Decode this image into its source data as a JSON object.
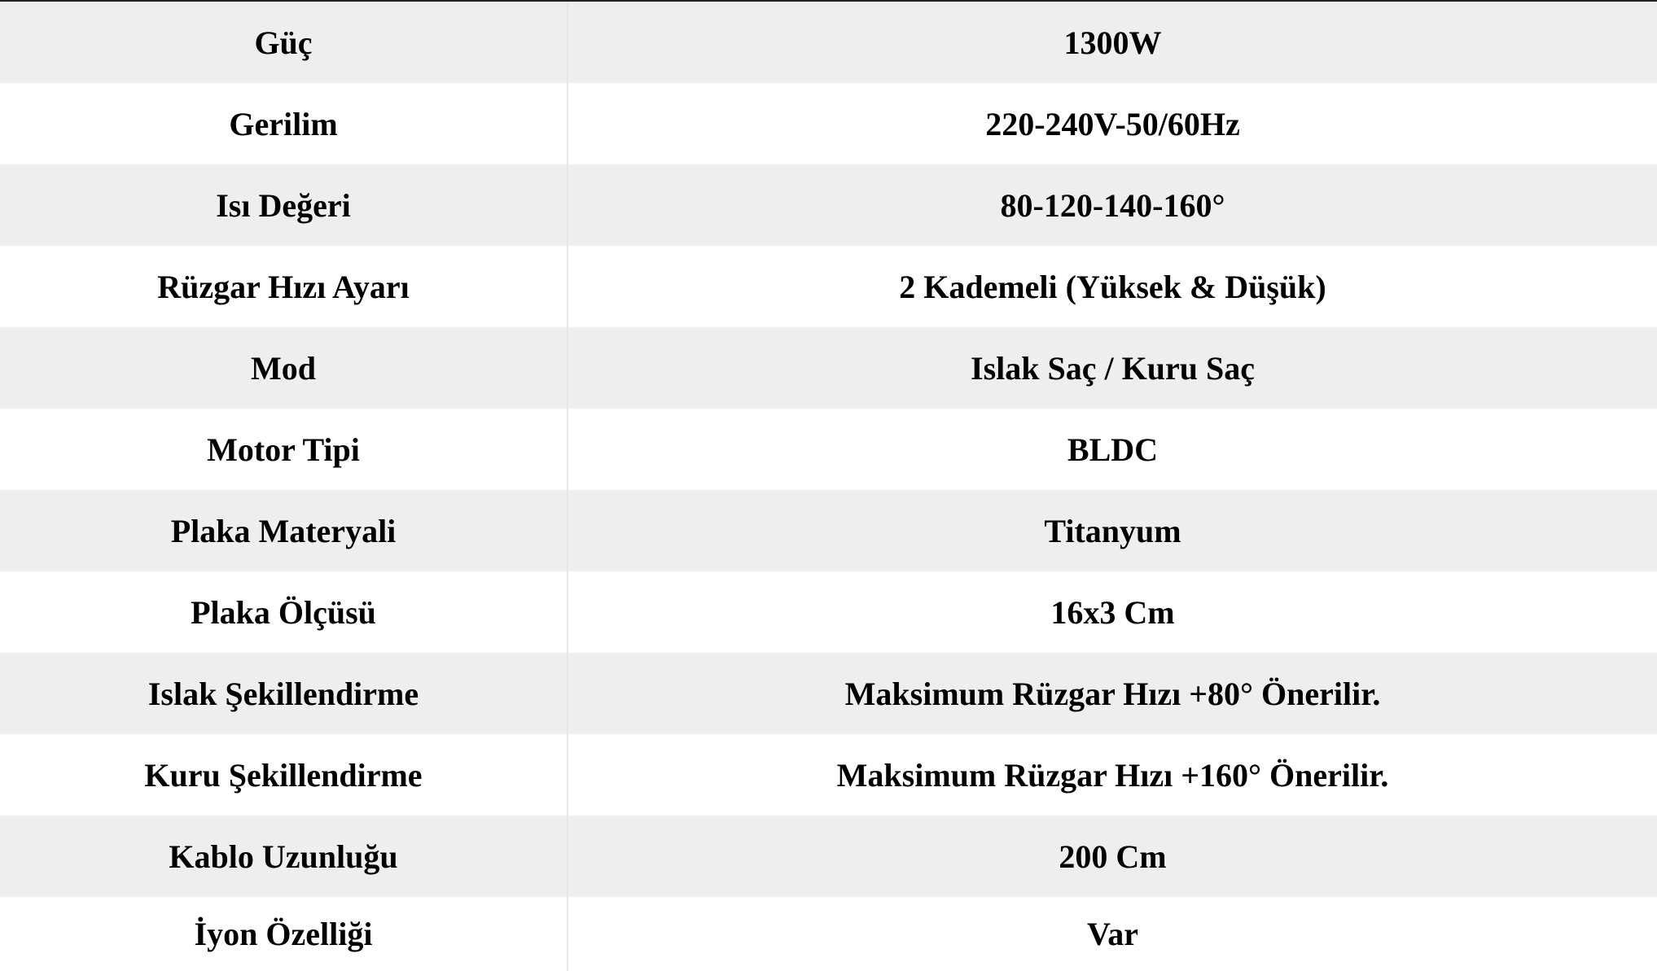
{
  "rows": [
    {
      "label": "Güç",
      "value": "1300W"
    },
    {
      "label": "Gerilim",
      "value": "220-240V-50/60Hz"
    },
    {
      "label": "Isı Değeri",
      "value": "80-120-140-160°"
    },
    {
      "label": "Rüzgar Hızı Ayarı",
      "value": "2 Kademeli (Yüksek & Düşük)"
    },
    {
      "label": "Mod",
      "value": "Islak Saç / Kuru Saç"
    },
    {
      "label": "Motor Tipi",
      "value": "BLDC"
    },
    {
      "label": "Plaka Materyali",
      "value": "Titanyum"
    },
    {
      "label": "Plaka Ölçüsü",
      "value": "16x3 Cm"
    },
    {
      "label": "Islak Şekillendirme",
      "value": "Maksimum Rüzgar Hızı +80° Önerilir."
    },
    {
      "label": "Kuru Şekillendirme",
      "value": "Maksimum Rüzgar Hızı +160° Önerilir."
    },
    {
      "label": "Kablo Uzunluğu",
      "value": "200 Cm"
    },
    {
      "label": "İyon Özelliği",
      "value": "Var"
    }
  ]
}
